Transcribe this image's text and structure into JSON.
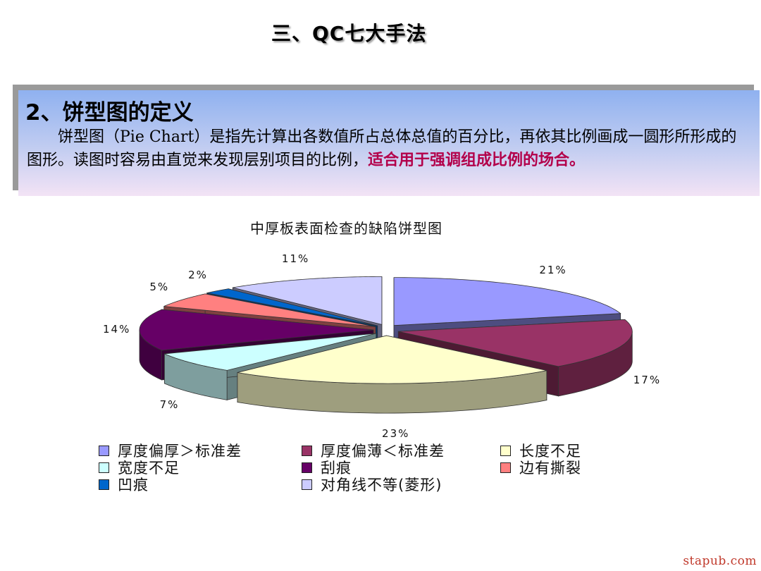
{
  "slide": {
    "title": "三、QC七大手法"
  },
  "definition": {
    "heading": "2、饼型图的定义",
    "body_plain": "　　饼型图（Pie Chart）是指先计算出各数值所占总体总值的百分比，再依其比例画成一圆形所形成的图形。读图时容易由直觉来发现层别项目的比例，",
    "body_highlight": "适合用于强调组成比例的场合。",
    "highlight_color": "#b3004a"
  },
  "chart_data": {
    "type": "pie",
    "title": "中厚板表面检查的缺陷饼型图",
    "categories": [
      "厚度偏厚＞标准差",
      "厚度偏薄＜标准差",
      "长度不足",
      "宽度不足",
      "刮痕",
      "边有撕裂",
      "凹痕",
      "对角线不等(菱形)"
    ],
    "values": [
      21,
      17,
      23,
      7,
      14,
      5,
      2,
      11
    ],
    "labels": [
      "21%",
      "17%",
      "23%",
      "7%",
      "14%",
      "5%",
      "2%",
      "11%"
    ],
    "colors": [
      "#9999ff",
      "#993366",
      "#ffffcc",
      "#ccffff",
      "#660066",
      "#ff8080",
      "#0066cc",
      "#ccccff"
    ],
    "exploded": true,
    "legend_placement": "bottom"
  },
  "watermark": "stapub.com"
}
